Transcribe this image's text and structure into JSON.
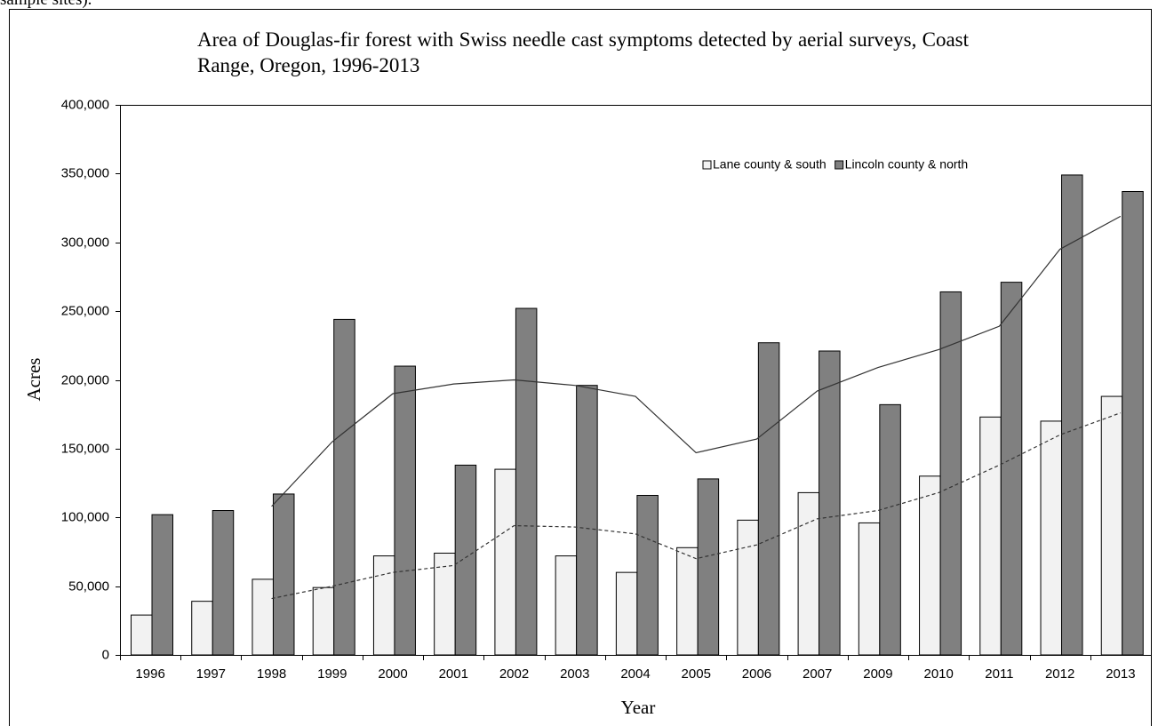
{
  "page_fragment": "sample sites).",
  "chart_data": {
    "type": "bar",
    "title": "Area of Douglas-fir forest with Swiss needle cast symptoms detected by aerial surveys, Coast Range, Oregon, 1996-2013",
    "x_label": "Year",
    "y_label": "Acres",
    "categories": [
      "1996",
      "1997",
      "1998",
      "1999",
      "2000",
      "2001",
      "2002",
      "2003",
      "2004",
      "2005",
      "2006",
      "2007",
      "2009",
      "2010",
      "2011",
      "2012",
      "2013"
    ],
    "series": [
      {
        "name": "Lane county & south",
        "color": "#f2f2f2",
        "values": [
          29000,
          39000,
          55000,
          49000,
          72000,
          74000,
          135000,
          72000,
          60000,
          78000,
          98000,
          118000,
          96000,
          130000,
          173000,
          170000,
          188000
        ]
      },
      {
        "name": "Lincoln county & north",
        "color": "#808080",
        "values": [
          102000,
          105000,
          117000,
          244000,
          210000,
          138000,
          252000,
          196000,
          116000,
          128000,
          227000,
          221000,
          182000,
          264000,
          271000,
          349000,
          337000
        ]
      }
    ],
    "trendlines": [
      {
        "style": "dashed",
        "color": "#333333",
        "values": [
          null,
          null,
          41000,
          50000,
          60000,
          65000,
          94000,
          93000,
          88000,
          70000,
          80000,
          99000,
          105000,
          118000,
          138000,
          160000,
          176000
        ]
      },
      {
        "style": "solid",
        "color": "#333333",
        "values": [
          null,
          null,
          108000,
          155000,
          190000,
          197000,
          200000,
          196000,
          188000,
          147000,
          157000,
          192000,
          209000,
          222000,
          239000,
          295000,
          319000
        ]
      }
    ],
    "ylim": [
      0,
      400000
    ],
    "yticks": [
      {
        "value": 0,
        "label": "0"
      },
      {
        "value": 50000,
        "label": "50,000"
      },
      {
        "value": 100000,
        "label": "100,000"
      },
      {
        "value": 150000,
        "label": "150,000"
      },
      {
        "value": 200000,
        "label": "200,000"
      },
      {
        "value": 250000,
        "label": "250,000"
      },
      {
        "value": 300000,
        "label": "300,000"
      },
      {
        "value": 350000,
        "label": "350,000"
      },
      {
        "value": 400000,
        "label": "400,000"
      }
    ],
    "grid": false,
    "legend": "upper-right"
  }
}
